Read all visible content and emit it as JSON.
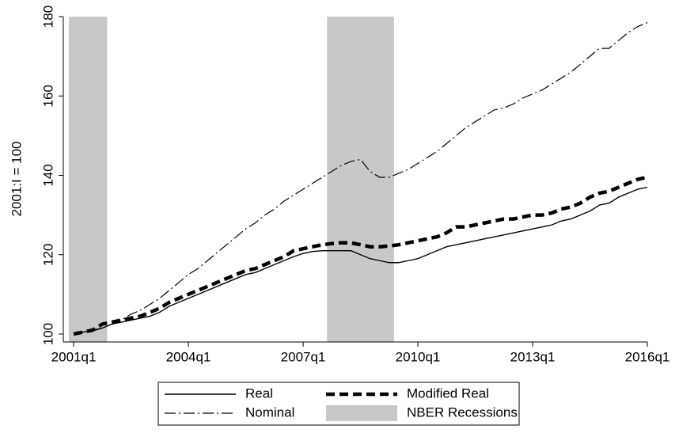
{
  "chart_data": {
    "type": "line",
    "y_label": "2001:I = 100",
    "x": [
      2001,
      2001.25,
      2001.5,
      2001.75,
      2002,
      2002.25,
      2002.5,
      2002.75,
      2003,
      2003.25,
      2003.5,
      2003.75,
      2004,
      2004.25,
      2004.5,
      2004.75,
      2005,
      2005.25,
      2005.5,
      2005.75,
      2006,
      2006.25,
      2006.5,
      2006.75,
      2007,
      2007.25,
      2007.5,
      2007.75,
      2008,
      2008.25,
      2008.5,
      2008.75,
      2009,
      2009.25,
      2009.5,
      2009.75,
      2010,
      2010.25,
      2010.5,
      2010.75,
      2011,
      2011.25,
      2011.5,
      2011.75,
      2012,
      2012.25,
      2012.5,
      2012.75,
      2013,
      2013.25,
      2013.5,
      2013.75,
      2014,
      2014.25,
      2014.5,
      2014.75,
      2015,
      2015.25,
      2015.5,
      2015.75,
      2016
    ],
    "series": [
      {
        "name": "Real",
        "color": "#000000",
        "line_style": "solid",
        "line_width": 1.4,
        "values": [
          100,
          100.5,
          100.8,
          101.5,
          102.5,
          103,
          103.5,
          104,
          104.5,
          105.5,
          107,
          108,
          109,
          110,
          111,
          112,
          113,
          114,
          115,
          115.5,
          116.5,
          117.5,
          118.5,
          119.5,
          120.3,
          120.8,
          121,
          121,
          121,
          121,
          120,
          119,
          118.5,
          118,
          118,
          118.5,
          119,
          120,
          121,
          122,
          122.5,
          123,
          123.5,
          124,
          124.5,
          125,
          125.5,
          126,
          126.5,
          127,
          127.5,
          128.5,
          129,
          130,
          131,
          132.5,
          133,
          134.5,
          135.5,
          136.5,
          137
        ]
      },
      {
        "name": "Modified Real",
        "color": "#000000",
        "line_style": "dashed",
        "line_width": 4.5,
        "values": [
          100,
          100.5,
          101,
          102.5,
          103,
          103.5,
          104,
          104.5,
          105.5,
          106.5,
          108,
          109,
          110,
          111,
          112,
          113,
          114,
          115,
          116,
          116.5,
          117.5,
          118.5,
          119.5,
          121,
          121.5,
          122,
          122.5,
          122.8,
          123,
          123,
          122.5,
          122,
          122,
          122.2,
          122.5,
          123,
          123.5,
          124,
          124.5,
          125.5,
          127,
          127,
          127.5,
          128,
          128.5,
          129,
          129,
          129.5,
          130,
          130,
          130.5,
          131.5,
          132,
          133,
          134.5,
          135.5,
          136,
          137,
          138,
          139,
          139.5
        ]
      },
      {
        "name": "Nominal",
        "color": "#000000",
        "line_style": "dash-dot",
        "line_width": 1.2,
        "values": [
          100,
          100.5,
          101,
          101.5,
          102.5,
          103.5,
          105,
          106,
          107.5,
          109,
          111,
          113,
          115,
          116.5,
          118.5,
          120.5,
          122.5,
          124.5,
          126.5,
          128,
          130,
          131.5,
          133.5,
          135,
          136.5,
          138,
          139.5,
          141,
          142.5,
          143.5,
          144,
          141,
          139.5,
          139.5,
          140.5,
          141.5,
          143,
          144.5,
          146,
          148,
          150,
          152,
          153.5,
          155,
          156.5,
          157,
          158,
          159.5,
          160.5,
          161.5,
          163,
          164.5,
          166,
          168,
          170,
          172,
          172,
          174,
          176,
          177.5,
          178.5
        ]
      }
    ],
    "recessions": {
      "name": "NBER Recessions",
      "color": "#c8c8c8",
      "periods": [
        [
          2000.875,
          2001.875
        ],
        [
          2007.625,
          2009.375
        ]
      ]
    },
    "xlim": [
      2000.73,
      2016
    ],
    "xticks": [
      {
        "value": 2001,
        "label": "2001q1"
      },
      {
        "value": 2004,
        "label": "2004q1"
      },
      {
        "value": 2007,
        "label": "2007q1"
      },
      {
        "value": 2010,
        "label": "2010q1"
      },
      {
        "value": 2013,
        "label": "2013q1"
      },
      {
        "value": 2016,
        "label": "2016q1"
      }
    ],
    "ylim": [
      98,
      180
    ],
    "yticks": [
      100,
      120,
      140,
      160,
      180
    ],
    "grid": false
  }
}
